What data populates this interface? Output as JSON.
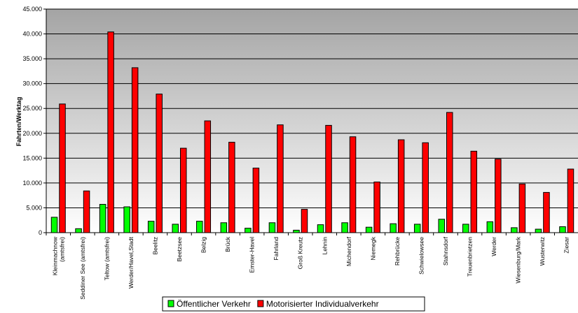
{
  "chart_data": {
    "type": "bar",
    "ylabel": "Fahrten/Werktag",
    "xlabel": "",
    "ylim": [
      0,
      45000
    ],
    "ytick_step": 5000,
    "ytick_labels": [
      "0",
      "5.000",
      "10.000",
      "15.000",
      "20.000",
      "25.000",
      "30.000",
      "35.000",
      "40.000",
      "45.000"
    ],
    "grid": true,
    "legend_position": "bottom",
    "categories": [
      [
        "Kleinmachnow",
        "(amtsfrei)"
      ],
      [
        "Seddiner See (amtsfrei)"
      ],
      [
        "Teltow (amtsfrei)"
      ],
      [
        "Werder/Havel,Stadt"
      ],
      [
        "Beelitz"
      ],
      [
        "Beetzsee"
      ],
      [
        "Belzig"
      ],
      [
        "Brück"
      ],
      [
        "Emster-Havel"
      ],
      [
        "Fahrland"
      ],
      [
        "Groß Kreutz"
      ],
      [
        "Lehnin"
      ],
      [
        "Michendorf"
      ],
      [
        "Niemegk"
      ],
      [
        "Rehbrücke"
      ],
      [
        "Schwielowsee"
      ],
      [
        "Stahnsdorf"
      ],
      [
        "Treuenbrietzen"
      ],
      [
        "Werder"
      ],
      [
        "Wiesenburg/Mark"
      ],
      [
        "Wusterwitz"
      ],
      [
        "Ziesar"
      ]
    ],
    "series": [
      {
        "name": "Öffentlicher Verkehr",
        "color": "#00ff00",
        "values": [
          3100,
          800,
          5700,
          5200,
          2300,
          1700,
          2300,
          2000,
          900,
          2000,
          500,
          1600,
          2000,
          1100,
          1800,
          1700,
          2700,
          1700,
          2200,
          1000,
          700,
          1200
        ]
      },
      {
        "name": "Motorisierter Individualverkehr",
        "color": "#ff0000",
        "values": [
          25900,
          8400,
          40400,
          33200,
          27900,
          17000,
          22500,
          18200,
          13000,
          21700,
          4700,
          21600,
          19300,
          10200,
          18700,
          18100,
          24200,
          16400,
          14800,
          9800,
          8100,
          12800
        ]
      }
    ]
  }
}
